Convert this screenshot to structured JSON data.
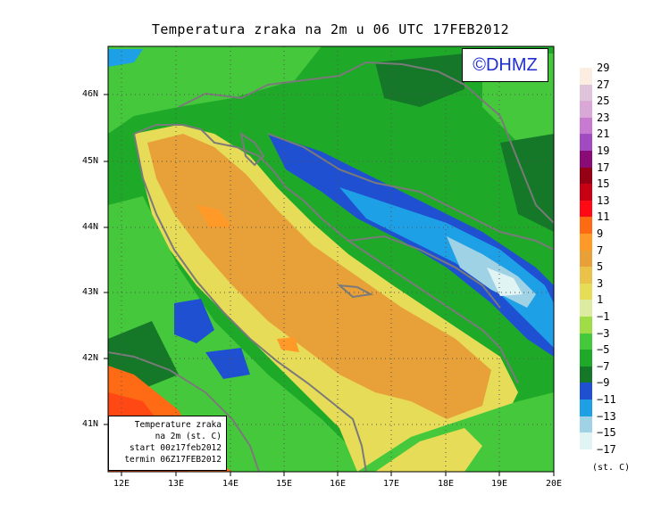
{
  "title": "Temperatura zraka na 2m u 06 UTC 17FEB2012",
  "logo_text": "©DHMZ",
  "info_box": {
    "line1": "Temperature zraka",
    "line2": "na 2m (st. C)",
    "line3": "start 00z17feb2012",
    "line4": "termin 06Z17FEB2012"
  },
  "lat_ticks": [
    "46N",
    "45N",
    "44N",
    "43N",
    "42N",
    "41N"
  ],
  "lon_ticks": [
    "12E",
    "13E",
    "14E",
    "15E",
    "16E",
    "17E",
    "18E",
    "19E",
    "20E"
  ],
  "legend": {
    "labels": [
      "29",
      "27",
      "25",
      "23",
      "21",
      "19",
      "17",
      "15",
      "13",
      "11",
      "9",
      "7",
      "5",
      "3",
      "1",
      "−1",
      "−3",
      "−5",
      "−7",
      "−9",
      "−11",
      "−13",
      "−15",
      "−17"
    ],
    "colors": [
      "#fbeee0",
      "#e0c4dc",
      "#d9a8d6",
      "#c87ad0",
      "#a24bc0",
      "#8a0a78",
      "#960014",
      "#c80014",
      "#ff0a14",
      "#ff6a14",
      "#ff9a28",
      "#e8a038",
      "#eac24a",
      "#e6dc58",
      "#dceba0",
      "#a0dc46",
      "#46c83c",
      "#1eaa28",
      "#147828",
      "#2050d2",
      "#1ea0e6",
      "#a0d2e6",
      "#e0f4f4"
    ],
    "unit": "(st. C)"
  }
}
